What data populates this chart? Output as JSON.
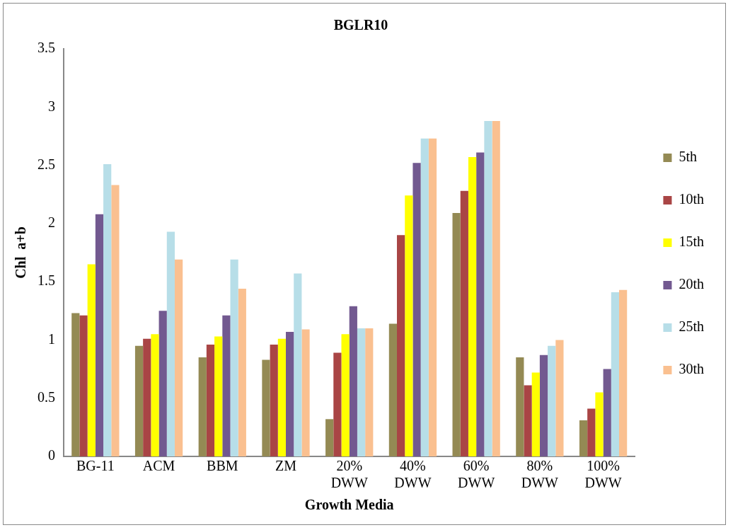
{
  "chart_data": {
    "type": "bar",
    "title": "BGLR10",
    "xlabel": "Growth Media",
    "ylabel": "Chl  a+b",
    "categories": [
      "BG-11",
      "ACM",
      "BBM",
      "ZM",
      "20% DWW",
      "40% DWW",
      "60% DWW",
      "80% DWW",
      "100% DWW"
    ],
    "series": [
      {
        "name": "5th",
        "color": "#948a54",
        "values": [
          1.23,
          0.95,
          0.85,
          0.83,
          0.32,
          1.14,
          2.09,
          0.85,
          0.31
        ]
      },
      {
        "name": "10th",
        "color": "#a94545",
        "values": [
          1.21,
          1.01,
          0.96,
          0.96,
          0.89,
          1.9,
          2.28,
          0.61,
          0.41
        ]
      },
      {
        "name": "15th",
        "color": "#ffff00",
        "values": [
          1.65,
          1.05,
          1.03,
          1.01,
          1.05,
          2.24,
          2.57,
          0.72,
          0.55
        ]
      },
      {
        "name": "20th",
        "color": "#725990",
        "values": [
          2.08,
          1.25,
          1.21,
          1.07,
          1.29,
          2.52,
          2.61,
          0.87,
          0.75
        ]
      },
      {
        "name": "25th",
        "color": "#b7dee8",
        "values": [
          2.51,
          1.93,
          1.69,
          1.57,
          1.1,
          2.73,
          2.88,
          0.95,
          1.41
        ]
      },
      {
        "name": "30th",
        "color": "#fac090",
        "values": [
          2.33,
          1.69,
          1.44,
          1.09,
          1.1,
          2.73,
          2.88,
          1,
          1.43
        ]
      }
    ],
    "ylim": [
      0,
      3.5
    ],
    "yticks": [
      0,
      0.5,
      1,
      1.5,
      2,
      2.5,
      3,
      3.5
    ],
    "grid": false,
    "legend": "right"
  }
}
